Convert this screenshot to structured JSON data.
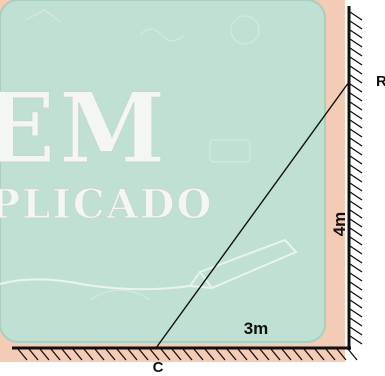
{
  "background": {
    "title_text": "EM",
    "subtitle_text": "PLICADO",
    "board_color": "#bfe0d2",
    "frame_color": "#f4cbb4"
  },
  "diagram": {
    "labels": {
      "top_point": "R",
      "bottom_point": "C",
      "vertical_length": "4m",
      "horizontal_length": "3m"
    },
    "line_color": "#111111",
    "hatch_color": "#111111"
  }
}
